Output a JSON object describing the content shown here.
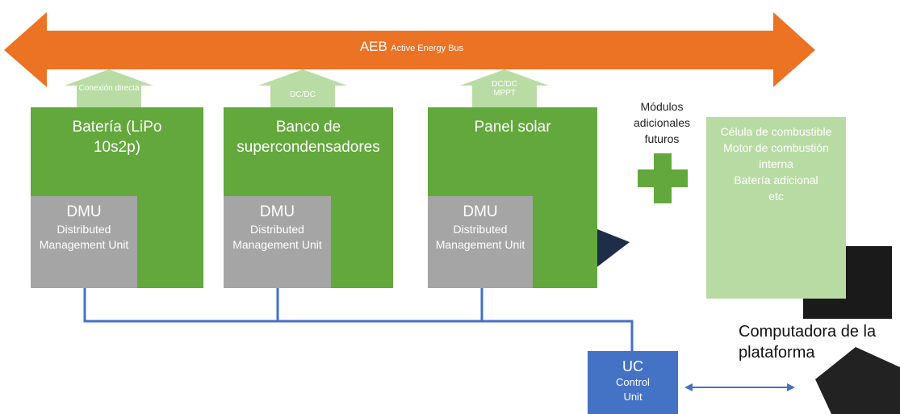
{
  "bus": {
    "label": "AEB",
    "sublabel": "Active Energy Bus"
  },
  "modules": [
    {
      "name": "Batería (LiPo 10s2p)",
      "connection": "Conexión directa",
      "dmu": {
        "title": "DMU",
        "subtitle": "Distributed Management Unit"
      }
    },
    {
      "name": "Banco de supercondensadores",
      "connection": "DC/DC",
      "dmu": {
        "title": "DMU",
        "subtitle": "Distributed Management Unit"
      }
    },
    {
      "name": "Panel solar",
      "connection": "DC/DC MPPT",
      "dmu": {
        "title": "DMU",
        "subtitle": "Distributed Management Unit"
      }
    }
  ],
  "future": {
    "label": "Módulos adicionales futuros",
    "items": [
      "Célula de combustible",
      "Motor de combustión interna",
      "Batería adicional",
      "etc"
    ]
  },
  "control_unit": {
    "title": "UC",
    "subtitle": "Control Unit"
  },
  "computer": {
    "label": "Computadora de la plataforma"
  }
}
